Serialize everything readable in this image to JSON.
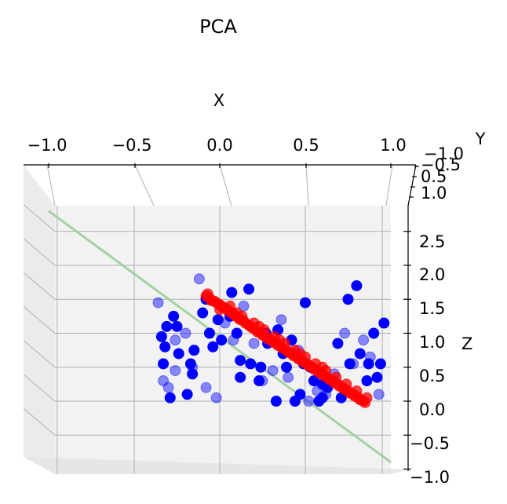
{
  "chart_data": {
    "type": "scatter",
    "projection": "3d",
    "title": "PCA",
    "xlabel": "X",
    "ylabel": "Y",
    "zlabel": "Z",
    "x_ticks": [
      "−1.0",
      "−0.5",
      "0.0",
      "0.5",
      "1.0"
    ],
    "y_ticks": [
      "−1.0",
      "−0.5",
      "0.5",
      "1.0"
    ],
    "z_ticks": [
      "−1.0",
      "−0.5",
      "0.0",
      "0.5",
      "1.0",
      "1.5",
      "2.0",
      "2.5"
    ],
    "xlim": [
      -1.1,
      1.1
    ],
    "zlim": [
      -1.0,
      2.9
    ],
    "grid": true,
    "colors": {
      "original": "#0000ff",
      "projected": "#ff0000",
      "principal_axis": "#90c890",
      "pane": "#f0f0f0",
      "grid": "#b0b0b0"
    },
    "principal_axis": {
      "x": [
        -1.0,
        1.0
      ],
      "z": [
        2.8,
        -0.9
      ]
    },
    "series": [
      {
        "role": "original points",
        "points": [
          [
            -0.36,
            1.45
          ],
          [
            -0.34,
            0.95
          ],
          [
            -0.33,
            0.55
          ],
          [
            -0.33,
            0.3
          ],
          [
            -0.32,
            0.8
          ],
          [
            -0.31,
            1.1
          ],
          [
            -0.3,
            0.2
          ],
          [
            -0.29,
            0.05
          ],
          [
            -0.27,
            1.25
          ],
          [
            -0.26,
            0.9
          ],
          [
            -0.25,
            1.1
          ],
          [
            -0.24,
            0.7
          ],
          [
            -0.2,
            1.0
          ],
          [
            -0.19,
            0.1
          ],
          [
            -0.17,
            0.55
          ],
          [
            -0.16,
            0.5
          ],
          [
            -0.16,
            0.4
          ],
          [
            -0.15,
            0.75
          ],
          [
            -0.12,
            1.8
          ],
          [
            -0.1,
            1.3
          ],
          [
            -0.08,
            1.5
          ],
          [
            -0.08,
            0.2
          ],
          [
            -0.06,
            1.0
          ],
          [
            -0.04,
            0.8
          ],
          [
            -0.02,
            0.05
          ],
          [
            -0.01,
            1.2
          ],
          [
            0.01,
            0.9
          ],
          [
            0.03,
            1.15
          ],
          [
            0.06,
            1.25
          ],
          [
            0.07,
            1.6
          ],
          [
            0.08,
            0.9
          ],
          [
            0.1,
            1.0
          ],
          [
            0.12,
            0.35
          ],
          [
            0.14,
            1.4
          ],
          [
            0.17,
            1.65
          ],
          [
            0.18,
            0.55
          ],
          [
            0.2,
            0.85
          ],
          [
            0.23,
            0.3
          ],
          [
            0.24,
            0.5
          ],
          [
            0.25,
            0.3
          ],
          [
            0.27,
            1.0
          ],
          [
            0.28,
            0.85
          ],
          [
            0.31,
            0.45
          ],
          [
            0.33,
            0.0
          ],
          [
            0.34,
            1.05
          ],
          [
            0.36,
            1.2
          ],
          [
            0.37,
            0.7
          ],
          [
            0.39,
            0.5
          ],
          [
            0.4,
            0.35
          ],
          [
            0.42,
            0.9
          ],
          [
            0.44,
            0.0
          ],
          [
            0.46,
            0.75
          ],
          [
            0.47,
            0.1
          ],
          [
            0.49,
            0.55
          ],
          [
            0.52,
            0.0
          ],
          [
            0.53,
            0.5
          ],
          [
            0.55,
            0.3
          ],
          [
            0.57,
            0.15
          ],
          [
            0.58,
            0.0
          ],
          [
            0.6,
            0.25
          ],
          [
            0.62,
            0.1
          ],
          [
            0.63,
            0.2
          ],
          [
            0.6,
            0.05
          ],
          [
            0.67,
            0.4
          ],
          [
            0.69,
            0.85
          ],
          [
            0.71,
            0.05
          ],
          [
            0.73,
            1.0
          ],
          [
            0.75,
            1.5
          ],
          [
            0.76,
            0.55
          ],
          [
            0.78,
            0.55
          ],
          [
            0.8,
            1.7
          ],
          [
            0.82,
            0.7
          ],
          [
            0.84,
            0.9
          ],
          [
            0.86,
            0.3
          ],
          [
            0.87,
            0.55
          ],
          [
            0.88,
            0.65
          ],
          [
            0.9,
            1.0
          ],
          [
            0.92,
            0.35
          ],
          [
            0.93,
            0.1
          ],
          [
            0.94,
            0.55
          ],
          [
            0.96,
            1.15
          ],
          [
            -0.26,
            0.45
          ],
          [
            0.12,
            0.6
          ],
          [
            0.5,
            1.45
          ]
        ]
      },
      {
        "role": "projected points",
        "points": [
          [
            -0.08,
            1.55
          ],
          [
            -0.06,
            1.52
          ],
          [
            -0.05,
            1.48
          ],
          [
            -0.03,
            1.47
          ],
          [
            -0.02,
            1.45
          ],
          [
            0.0,
            1.42
          ],
          [
            0.01,
            1.4
          ],
          [
            0.02,
            1.38
          ],
          [
            0.04,
            1.36
          ],
          [
            0.05,
            1.33
          ],
          [
            0.07,
            1.3
          ],
          [
            0.08,
            1.28
          ],
          [
            0.09,
            1.26
          ],
          [
            0.11,
            1.22
          ],
          [
            0.12,
            1.2
          ],
          [
            0.14,
            1.18
          ],
          [
            0.15,
            1.15
          ],
          [
            0.17,
            1.12
          ],
          [
            0.18,
            1.1
          ],
          [
            0.19,
            1.08
          ],
          [
            0.21,
            1.05
          ],
          [
            0.22,
            1.02
          ],
          [
            0.24,
            1.0
          ],
          [
            0.25,
            0.97
          ],
          [
            0.27,
            0.95
          ],
          [
            0.28,
            0.92
          ],
          [
            0.3,
            0.9
          ],
          [
            0.31,
            0.87
          ],
          [
            0.33,
            0.85
          ],
          [
            0.34,
            0.82
          ],
          [
            0.36,
            0.8
          ],
          [
            0.37,
            0.78
          ],
          [
            0.39,
            0.75
          ],
          [
            0.4,
            0.72
          ],
          [
            0.42,
            0.7
          ],
          [
            0.43,
            0.67
          ],
          [
            0.45,
            0.65
          ],
          [
            0.46,
            0.62
          ],
          [
            0.48,
            0.6
          ],
          [
            0.49,
            0.57
          ],
          [
            0.51,
            0.55
          ],
          [
            0.52,
            0.52
          ],
          [
            0.54,
            0.5
          ],
          [
            0.55,
            0.47
          ],
          [
            0.57,
            0.45
          ],
          [
            0.58,
            0.42
          ],
          [
            0.6,
            0.4
          ],
          [
            0.61,
            0.37
          ],
          [
            0.63,
            0.35
          ],
          [
            0.64,
            0.32
          ],
          [
            0.66,
            0.3
          ],
          [
            0.67,
            0.27
          ],
          [
            0.69,
            0.25
          ],
          [
            0.7,
            0.22
          ],
          [
            0.72,
            0.2
          ],
          [
            0.73,
            0.17
          ],
          [
            0.75,
            0.15
          ],
          [
            0.76,
            0.12
          ],
          [
            0.78,
            0.1
          ],
          [
            0.79,
            0.07
          ],
          [
            0.81,
            0.05
          ],
          [
            0.82,
            0.02
          ],
          [
            0.84,
            0.0
          ],
          [
            0.85,
            -0.02
          ],
          [
            -0.07,
            1.58
          ],
          [
            0.0,
            1.35
          ],
          [
            0.06,
            1.4
          ],
          [
            0.13,
            1.25
          ],
          [
            0.2,
            1.15
          ],
          [
            0.26,
            1.05
          ],
          [
            0.32,
            0.95
          ],
          [
            0.38,
            0.85
          ],
          [
            0.44,
            0.75
          ],
          [
            0.5,
            0.65
          ],
          [
            0.56,
            0.55
          ],
          [
            0.62,
            0.45
          ],
          [
            0.68,
            0.35
          ],
          [
            0.74,
            0.25
          ],
          [
            0.8,
            0.15
          ],
          [
            0.86,
            0.05
          ],
          [
            0.1,
            1.3
          ],
          [
            0.35,
            0.9
          ],
          [
            0.6,
            0.5
          ],
          [
            0.23,
            1.1
          ],
          [
            0.47,
            0.7
          ]
        ]
      }
    ]
  }
}
